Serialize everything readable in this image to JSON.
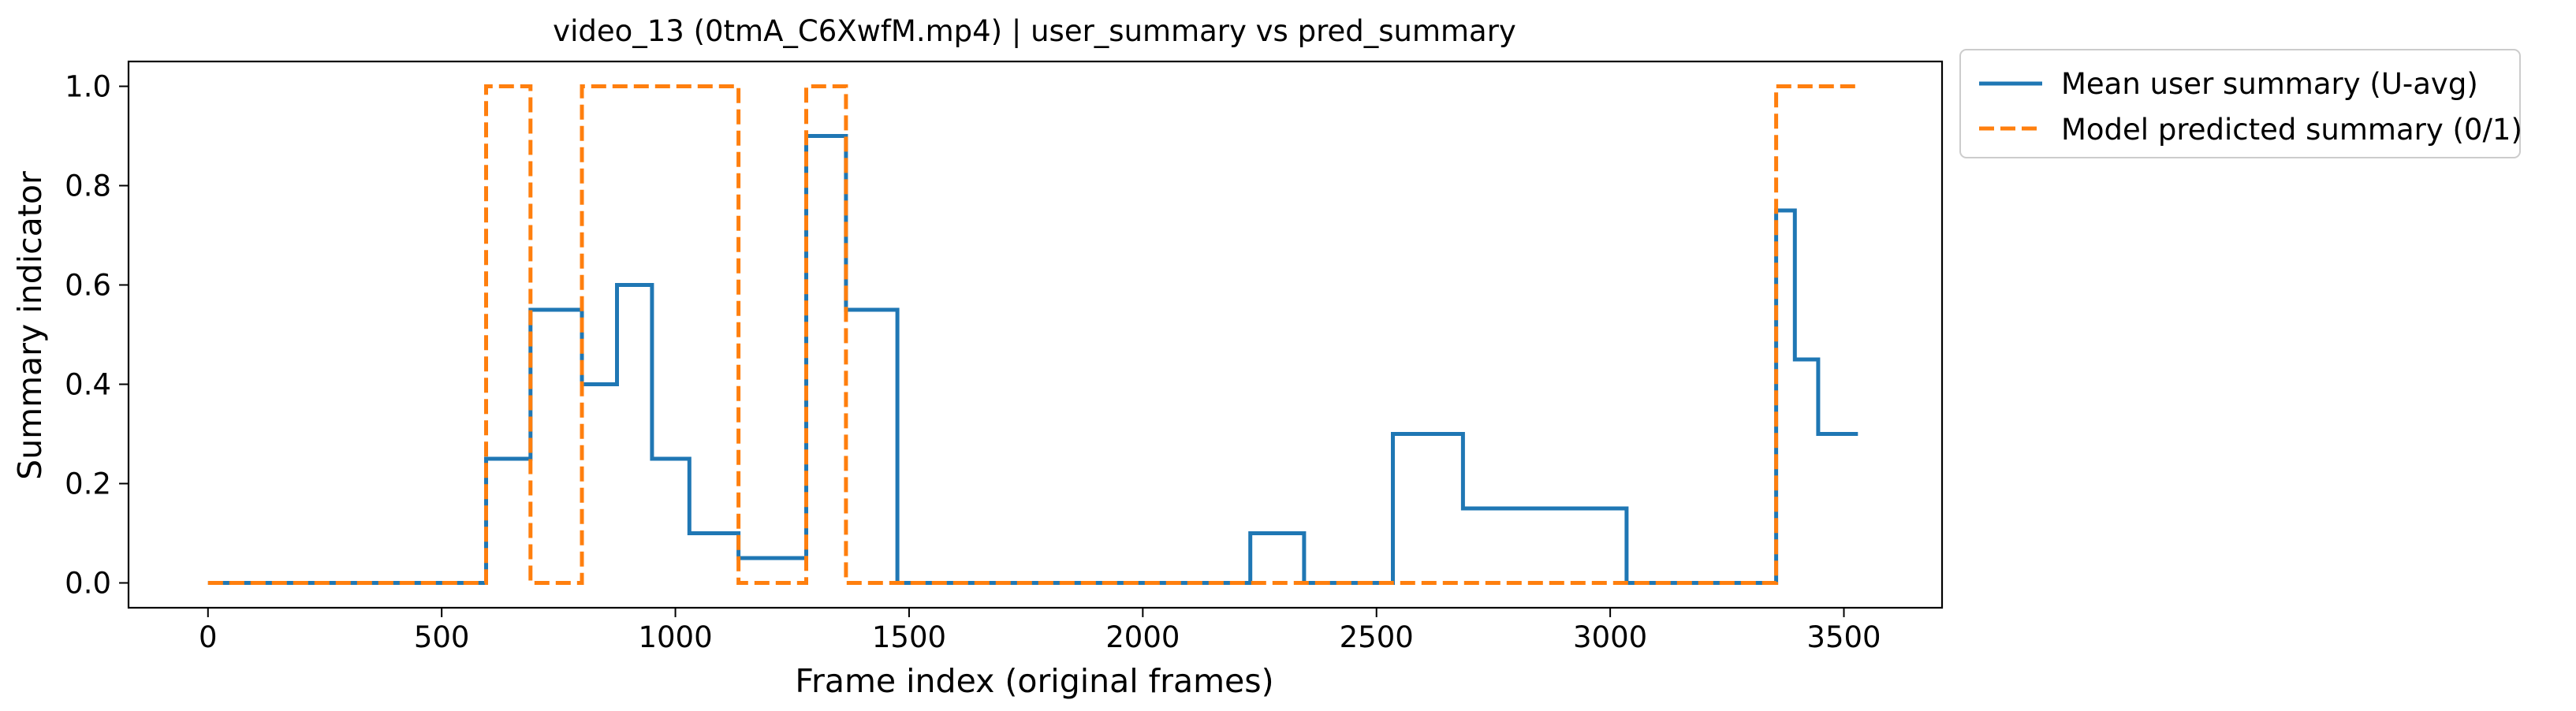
{
  "chart_data": {
    "type": "line",
    "title": "video_13 (0tmA_C6XwfM.mp4) | user_summary vs pred_summary",
    "xlabel": "Frame index (original frames)",
    "ylabel": "Summary indicator",
    "xlim": [
      -170,
      3710
    ],
    "ylim": [
      -0.05,
      1.05
    ],
    "xticks": [
      0,
      500,
      1000,
      1500,
      2000,
      2500,
      3000,
      3500
    ],
    "xtick_labels": [
      "0",
      "500",
      "1000",
      "1500",
      "2000",
      "2500",
      "3000",
      "3500"
    ],
    "yticks": [
      0.0,
      0.2,
      0.4,
      0.6,
      0.8,
      1.0
    ],
    "ytick_labels": [
      "0.0",
      "0.2",
      "0.4",
      "0.6",
      "0.8",
      "1.0"
    ],
    "grid": false,
    "legend_position": "outside-top-right",
    "series": [
      {
        "name": "Mean user summary (U-avg)",
        "color": "#1f77b4",
        "style": "solid",
        "step": true,
        "points": [
          [
            0,
            0.0
          ],
          [
            595,
            0.0
          ],
          [
            595,
            0.25
          ],
          [
            690,
            0.25
          ],
          [
            690,
            0.55
          ],
          [
            800,
            0.55
          ],
          [
            800,
            0.4
          ],
          [
            875,
            0.4
          ],
          [
            875,
            0.6
          ],
          [
            950,
            0.6
          ],
          [
            950,
            0.25
          ],
          [
            1030,
            0.25
          ],
          [
            1030,
            0.1
          ],
          [
            1135,
            0.1
          ],
          [
            1135,
            0.05
          ],
          [
            1280,
            0.05
          ],
          [
            1280,
            0.9
          ],
          [
            1365,
            0.9
          ],
          [
            1365,
            0.55
          ],
          [
            1475,
            0.55
          ],
          [
            1475,
            0.0
          ],
          [
            2230,
            0.0
          ],
          [
            2230,
            0.1
          ],
          [
            2345,
            0.1
          ],
          [
            2345,
            0.0
          ],
          [
            2535,
            0.0
          ],
          [
            2535,
            0.3
          ],
          [
            2685,
            0.3
          ],
          [
            2685,
            0.15
          ],
          [
            3035,
            0.15
          ],
          [
            3035,
            0.0
          ],
          [
            3355,
            0.0
          ],
          [
            3355,
            0.75
          ],
          [
            3395,
            0.75
          ],
          [
            3395,
            0.45
          ],
          [
            3445,
            0.45
          ],
          [
            3445,
            0.3
          ],
          [
            3530,
            0.3
          ]
        ]
      },
      {
        "name": "Model predicted summary (0/1)",
        "color": "#ff7f0e",
        "style": "dashed",
        "step": true,
        "points": [
          [
            0,
            0.0
          ],
          [
            595,
            0.0
          ],
          [
            595,
            1.0
          ],
          [
            690,
            1.0
          ],
          [
            690,
            0.0
          ],
          [
            800,
            0.0
          ],
          [
            800,
            1.0
          ],
          [
            1135,
            1.0
          ],
          [
            1135,
            0.0
          ],
          [
            1280,
            0.0
          ],
          [
            1280,
            1.0
          ],
          [
            1365,
            1.0
          ],
          [
            1365,
            0.0
          ],
          [
            3355,
            0.0
          ],
          [
            3355,
            1.0
          ],
          [
            3530,
            1.0
          ]
        ]
      }
    ]
  }
}
